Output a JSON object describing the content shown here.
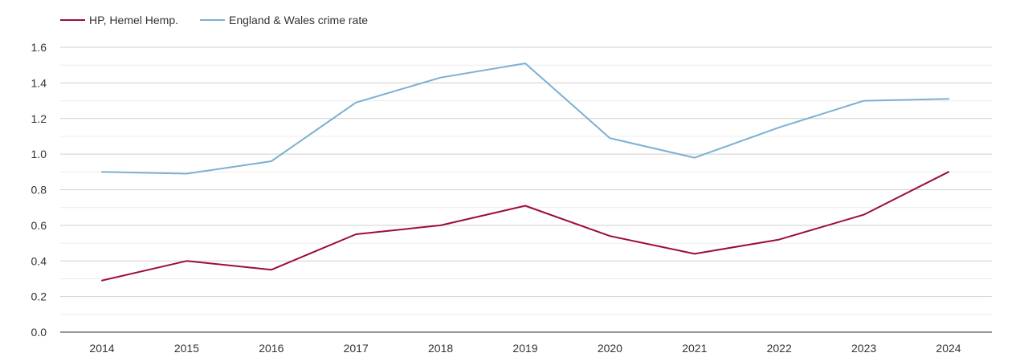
{
  "chart_data": {
    "type": "line",
    "title": "",
    "xlabel": "",
    "ylabel": "",
    "categories": [
      "2014",
      "2015",
      "2016",
      "2017",
      "2018",
      "2019",
      "2020",
      "2021",
      "2022",
      "2023",
      "2024"
    ],
    "ylim": [
      0,
      1.6
    ],
    "yticks": [
      "0.0",
      "0.2",
      "0.4",
      "0.6",
      "0.8",
      "1.0",
      "1.2",
      "1.4",
      "1.6"
    ],
    "grid": true,
    "legend_position": "top-left",
    "series": [
      {
        "name": "HP, Hemel Hemp.",
        "color": "#9c0d38",
        "values": [
          0.29,
          0.4,
          0.35,
          0.55,
          0.6,
          0.71,
          0.54,
          0.44,
          0.52,
          0.66,
          0.9
        ]
      },
      {
        "name": "England & Wales crime rate",
        "color": "#7bb0d3",
        "values": [
          0.9,
          0.89,
          0.96,
          1.29,
          1.43,
          1.51,
          1.09,
          0.98,
          1.15,
          1.3,
          1.31
        ]
      }
    ]
  }
}
